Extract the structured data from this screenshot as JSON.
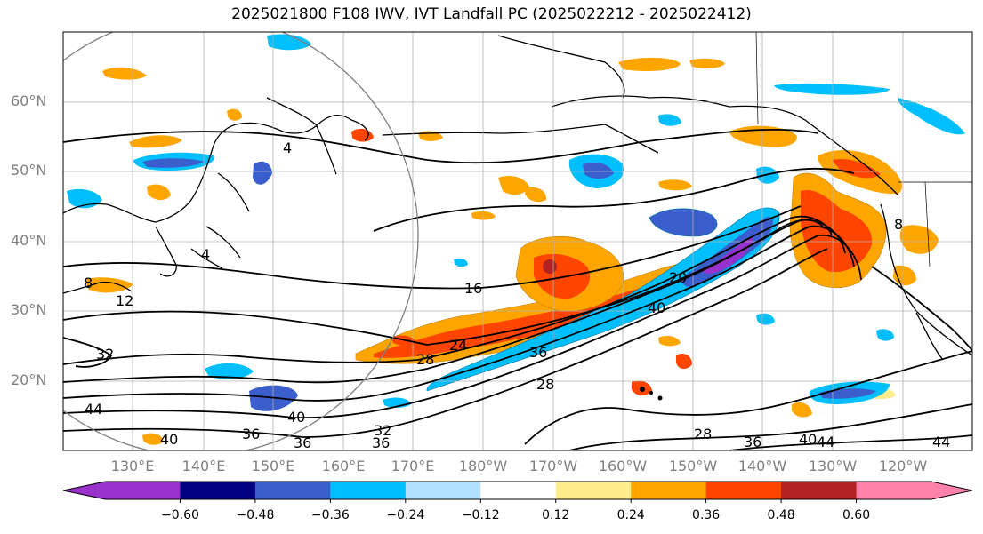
{
  "title": "2025021800 F108 IWV, IVT Landfall PC (2025022212 - 2025022412)",
  "lat_labels": [
    "60°N",
    "50°N",
    "40°N",
    "30°N",
    "20°N"
  ],
  "lon_labels": [
    "130°E",
    "140°E",
    "150°E",
    "160°E",
    "170°E",
    "180°W",
    "170°W",
    "160°W",
    "150°W",
    "140°W",
    "130°W",
    "120°W"
  ],
  "colorbar": {
    "ticks": [
      "−0.60",
      "−0.48",
      "−0.36",
      "−0.24",
      "−0.12",
      "0.12",
      "0.24",
      "0.36",
      "0.48",
      "0.60"
    ],
    "colors": [
      "#9932cc",
      "#000080",
      "#3a5fcd",
      "#00bfff",
      "#b0e2ff",
      "#ffffff",
      "#ffec8b",
      "#ffa500",
      "#ff4500",
      "#b22222",
      "#ff82ab"
    ]
  },
  "contour_labels": [
    "16",
    "24",
    "28",
    "36",
    "40",
    "28",
    "20",
    "40",
    "36",
    "28",
    "36",
    "40",
    "44",
    "8",
    "12",
    "32",
    "44",
    "8",
    "4",
    "4",
    "44",
    "36",
    "40",
    "36",
    "32"
  ],
  "colors": {
    "map_border": "#000000",
    "grid": "#b0b0b0",
    "axis_text": "#808080",
    "contour": "#000000",
    "domain_circle": "#808080"
  }
}
